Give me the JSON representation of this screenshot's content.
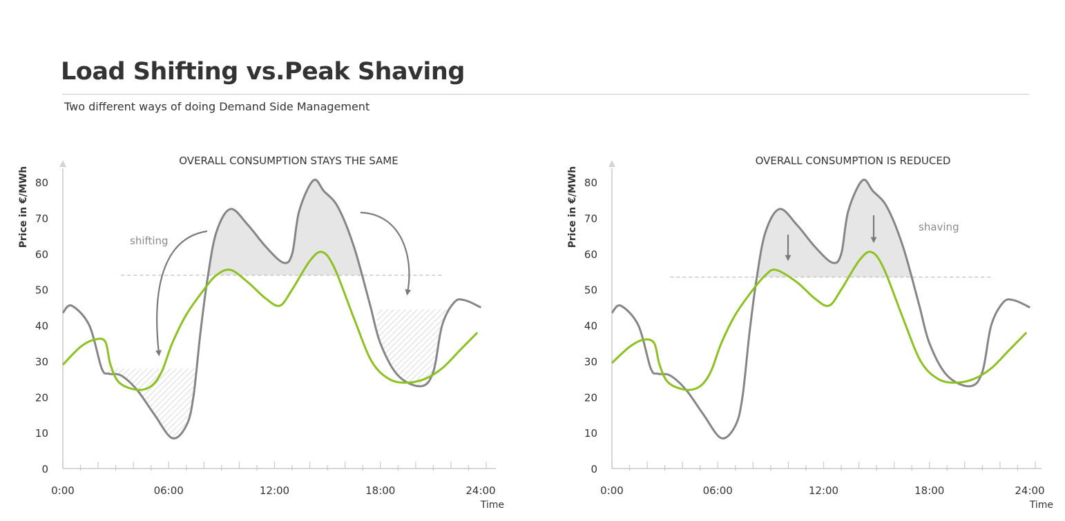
{
  "header": {
    "title": "Load Shifting vs.Peak Shaving",
    "subtitle": "Two different ways of doing Demand Side Management"
  },
  "colors": {
    "original": "#858585",
    "optimized": "#8cc11f",
    "fill": "#e6e6e6",
    "hatch": "#d0d0d0",
    "axis": "#c8c8c8",
    "text": "#333333"
  },
  "chart_data": [
    {
      "type": "line",
      "title": "OVERALL CONSUMPTION STAYS THE SAME",
      "ylabel": "Price in €/MWh",
      "xlabel": "Time",
      "ylim": [
        0,
        80
      ],
      "xlim": [
        0,
        24
      ],
      "yticks": [
        0,
        10,
        20,
        30,
        40,
        50,
        60,
        70,
        80
      ],
      "xtick_labels": [
        {
          "h": 0,
          "label": "0:00"
        },
        {
          "h": 6,
          "label": "06:00"
        },
        {
          "h": 12,
          "label": "12:00"
        },
        {
          "h": 18,
          "label": "18:00"
        },
        {
          "h": 24,
          "label": "24:00"
        }
      ],
      "threshold": 54,
      "series": [
        {
          "key": "original",
          "color": "#858585",
          "points": [
            [
              0,
              43.5
            ],
            [
              0.5,
              45.5
            ],
            [
              1.5,
              40
            ],
            [
              2.2,
              28
            ],
            [
              2.6,
              26.5
            ],
            [
              3.3,
              26
            ],
            [
              4.2,
              22
            ],
            [
              5.2,
              15
            ],
            [
              6.2,
              8.5
            ],
            [
              7,
              12
            ],
            [
              7.4,
              20
            ],
            [
              7.8,
              38
            ],
            [
              8.2,
              53
            ],
            [
              8.7,
              66
            ],
            [
              9.5,
              72.5
            ],
            [
              10.5,
              68
            ],
            [
              11.5,
              62
            ],
            [
              12.5,
              57.5
            ],
            [
              13,
              60
            ],
            [
              13.4,
              72
            ],
            [
              14.2,
              80.5
            ],
            [
              14.8,
              77.5
            ],
            [
              15.6,
              73
            ],
            [
              16.5,
              62
            ],
            [
              17.4,
              46
            ],
            [
              18,
              35
            ],
            [
              19,
              26
            ],
            [
              20.3,
              23
            ],
            [
              21,
              27
            ],
            [
              21.5,
              40
            ],
            [
              22.2,
              46.5
            ],
            [
              22.8,
              47
            ],
            [
              23.7,
              45
            ]
          ]
        },
        {
          "key": "optimized",
          "color": "#8cc11f",
          "points": [
            [
              0,
              29
            ],
            [
              1,
              34
            ],
            [
              1.8,
              36
            ],
            [
              2.4,
              35.5
            ],
            [
              2.7,
              29
            ],
            [
              3.2,
              24
            ],
            [
              4.2,
              22
            ],
            [
              5,
              23
            ],
            [
              5.6,
              27
            ],
            [
              6.2,
              35
            ],
            [
              7,
              43
            ],
            [
              8,
              50
            ],
            [
              8.7,
              54
            ],
            [
              9.5,
              55.5
            ],
            [
              10.5,
              52
            ],
            [
              11.5,
              47.5
            ],
            [
              12.3,
              45.5
            ],
            [
              13,
              50
            ],
            [
              14,
              58
            ],
            [
              14.7,
              60.5
            ],
            [
              15.4,
              56
            ],
            [
              16.5,
              42
            ],
            [
              17.5,
              30
            ],
            [
              18.5,
              25
            ],
            [
              19.5,
              24
            ],
            [
              20.5,
              25
            ],
            [
              21.5,
              28
            ],
            [
              22.5,
              33
            ],
            [
              23.5,
              38
            ]
          ]
        }
      ],
      "dashed_range": [
        3.3,
        21.5
      ],
      "shaded_above_threshold": true,
      "hatched": [
        {
          "level": 28,
          "range": [
            2.6,
            7.8
          ]
        },
        {
          "level": 44.5,
          "range": [
            17.8,
            21.8
          ]
        }
      ],
      "annotations": [
        {
          "text": "shifting"
        }
      ]
    },
    {
      "type": "line",
      "title": "OVERALL CONSUMPTION IS REDUCED",
      "ylabel": "Price in €/MWh",
      "xlabel": "Time",
      "ylim": [
        0,
        80
      ],
      "xlim": [
        0,
        24
      ],
      "yticks": [
        0,
        10,
        20,
        30,
        40,
        50,
        60,
        70,
        80
      ],
      "xtick_labels": [
        {
          "h": 0,
          "label": "0:00"
        },
        {
          "h": 6,
          "label": "06:00"
        },
        {
          "h": 12,
          "label": "12:00"
        },
        {
          "h": 18,
          "label": "18:00"
        },
        {
          "h": 24,
          "label": "24:00"
        }
      ],
      "threshold": 53.5,
      "series": [
        {
          "key": "original",
          "color": "#858585",
          "points": [
            [
              0,
              43.5
            ],
            [
              0.5,
              45.5
            ],
            [
              1.5,
              40
            ],
            [
              2.2,
              28
            ],
            [
              2.6,
              26.5
            ],
            [
              3.3,
              26
            ],
            [
              4.2,
              22
            ],
            [
              5.2,
              15
            ],
            [
              6.2,
              8.5
            ],
            [
              7,
              12
            ],
            [
              7.4,
              20
            ],
            [
              7.8,
              38
            ],
            [
              8.2,
              53
            ],
            [
              8.7,
              66
            ],
            [
              9.5,
              72.5
            ],
            [
              10.5,
              68
            ],
            [
              11.5,
              62
            ],
            [
              12.5,
              57.5
            ],
            [
              13,
              60
            ],
            [
              13.4,
              72
            ],
            [
              14.2,
              80.5
            ],
            [
              14.8,
              77.5
            ],
            [
              15.6,
              73
            ],
            [
              16.5,
              62
            ],
            [
              17.4,
              46
            ],
            [
              18,
              35
            ],
            [
              19,
              26
            ],
            [
              20.3,
              23
            ],
            [
              21,
              27
            ],
            [
              21.5,
              40
            ],
            [
              22.2,
              46.5
            ],
            [
              22.8,
              47
            ],
            [
              23.7,
              45
            ]
          ]
        },
        {
          "key": "optimized",
          "color": "#8cc11f",
          "points": [
            [
              0,
              29.5
            ],
            [
              1,
              34
            ],
            [
              1.8,
              36
            ],
            [
              2.4,
              35
            ],
            [
              2.7,
              29
            ],
            [
              3.2,
              24
            ],
            [
              4.2,
              22
            ],
            [
              5,
              23
            ],
            [
              5.6,
              27
            ],
            [
              6.2,
              35
            ],
            [
              7,
              43
            ],
            [
              8,
              50
            ],
            [
              8.7,
              54
            ],
            [
              9.3,
              55.5
            ],
            [
              10.5,
              52
            ],
            [
              11.5,
              47.5
            ],
            [
              12.3,
              45.5
            ],
            [
              13,
              50
            ],
            [
              14,
              58
            ],
            [
              14.7,
              60.5
            ],
            [
              15.4,
              56
            ],
            [
              16.5,
              42
            ],
            [
              17.5,
              30
            ],
            [
              18.5,
              25
            ],
            [
              19.5,
              24
            ],
            [
              20.5,
              25
            ],
            [
              21.5,
              28
            ],
            [
              22.5,
              33
            ],
            [
              23.5,
              38
            ]
          ]
        }
      ],
      "dashed_range": [
        3.3,
        21.5
      ],
      "shaded_above_threshold": true,
      "hatched": [],
      "annotations": [
        {
          "text": "shaving"
        }
      ]
    }
  ]
}
